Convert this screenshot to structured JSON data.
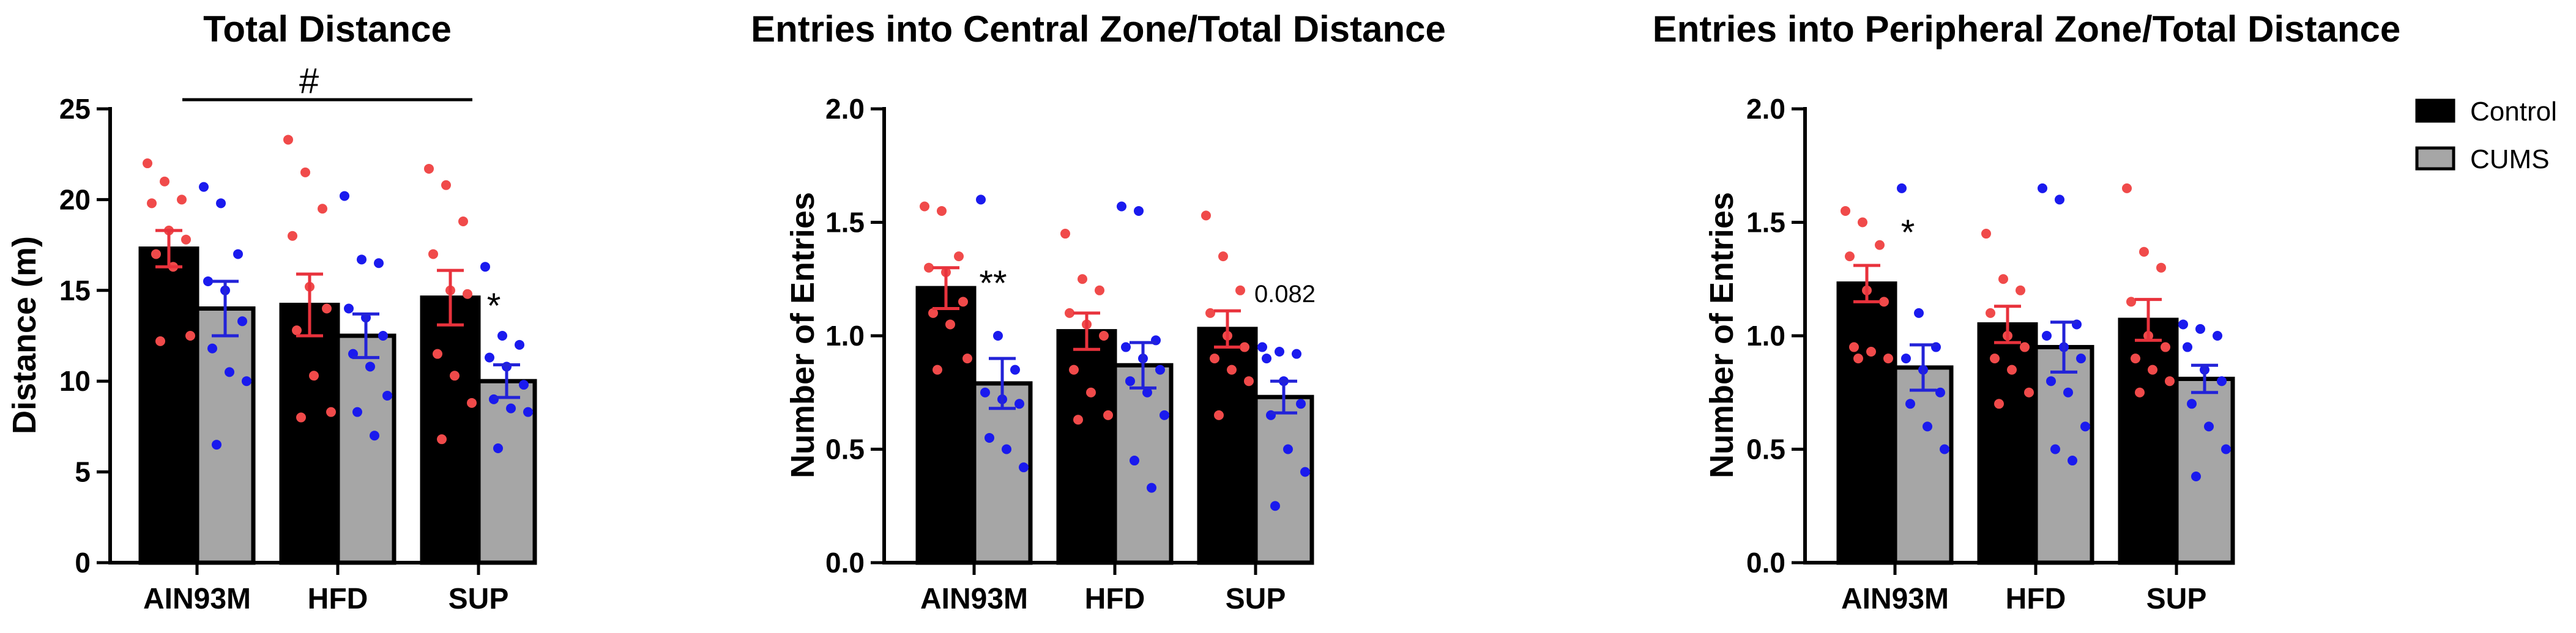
{
  "colors": {
    "control_bar": "#000000",
    "cums_bar": "#a6a6a6",
    "control_points": "#f04a4a",
    "cums_points": "#1a1aee",
    "control_err": "#e8323c",
    "cums_err": "#2323d8"
  },
  "legend": {
    "control": "Control",
    "cums": "CUMS"
  },
  "chart_data": [
    {
      "type": "bar",
      "title": "Total Distance",
      "xlabel": "",
      "ylabel": "Distance  (m)",
      "categories": [
        "AIN93M",
        "HFD",
        "SUP"
      ],
      "ylim": [
        0,
        25
      ],
      "yticks": [
        0,
        5,
        10,
        15,
        20,
        25
      ],
      "ytick_labels": [
        "0",
        "5",
        "10",
        "15",
        "20",
        "25"
      ],
      "series": [
        {
          "name": "Control",
          "values": [
            17.3,
            14.2,
            14.6
          ],
          "sem": [
            1.0,
            1.7,
            1.5
          ],
          "points": [
            [
              22.0,
              21.0,
              20.0,
              19.8,
              18.3,
              17.8,
              17.0,
              16.3,
              12.5,
              12.2
            ],
            [
              23.3,
              21.5,
              19.5,
              18.0,
              15.2,
              14.0,
              12.8,
              10.3,
              8.3,
              8.0
            ],
            [
              21.7,
              20.8,
              18.8,
              17.0,
              15.0,
              14.8,
              11.5,
              10.3,
              8.8,
              6.8
            ]
          ]
        },
        {
          "name": "CUMS",
          "values": [
            14.0,
            12.5,
            10.0
          ],
          "sem": [
            1.5,
            1.2,
            0.9
          ],
          "points": [
            [
              20.7,
              19.8,
              17.0,
              15.5,
              15.0,
              13.3,
              11.8,
              10.5,
              10.0,
              6.5
            ],
            [
              20.2,
              16.7,
              16.5,
              14.0,
              13.5,
              12.5,
              11.5,
              10.8,
              9.2,
              8.3,
              7.0
            ],
            [
              16.3,
              12.5,
              12.0,
              11.3,
              10.8,
              9.8,
              9.0,
              8.5,
              8.3,
              6.3
            ]
          ]
        }
      ],
      "bracket_label": "#",
      "significance": [
        "",
        "",
        "*"
      ]
    },
    {
      "type": "bar",
      "title": "Entries into Central Zone/Total Distance",
      "xlabel": "",
      "ylabel": "Number of Entries",
      "categories": [
        "AIN93M",
        "HFD",
        "SUP"
      ],
      "ylim": [
        0,
        2.0
      ],
      "yticks": [
        0,
        0.5,
        1.0,
        1.5,
        2.0
      ],
      "ytick_labels": [
        "0.0",
        "0.5",
        "1.0",
        "1.5",
        "2.0"
      ],
      "series": [
        {
          "name": "Control",
          "values": [
            1.21,
            1.02,
            1.03
          ],
          "sem": [
            0.09,
            0.08,
            0.08
          ],
          "points": [
            [
              1.57,
              1.55,
              1.35,
              1.3,
              1.28,
              1.15,
              1.1,
              1.05,
              0.9,
              0.85
            ],
            [
              1.45,
              1.25,
              1.2,
              1.1,
              1.05,
              1.0,
              0.85,
              0.75,
              0.65,
              0.63
            ],
            [
              1.53,
              1.35,
              1.2,
              1.1,
              1.0,
              0.95,
              0.9,
              0.85,
              0.8,
              0.65
            ]
          ]
        },
        {
          "name": "CUMS",
          "values": [
            0.79,
            0.87,
            0.73
          ],
          "sem": [
            0.11,
            0.1,
            0.07
          ],
          "points": [
            [
              1.6,
              1.0,
              0.85,
              0.75,
              0.72,
              0.7,
              0.55,
              0.5,
              0.42
            ],
            [
              1.57,
              1.55,
              0.98,
              0.95,
              0.9,
              0.85,
              0.8,
              0.75,
              0.65,
              0.45,
              0.33
            ],
            [
              0.95,
              0.93,
              0.92,
              0.9,
              0.8,
              0.7,
              0.65,
              0.5,
              0.4,
              0.25
            ]
          ]
        }
      ],
      "significance": [
        "**",
        "",
        "0.082"
      ]
    },
    {
      "type": "bar",
      "title": "Entries into Peripheral Zone/Total Distance",
      "xlabel": "",
      "ylabel": "Number of Entries",
      "categories": [
        "AIN93M",
        "HFD",
        "SUP"
      ],
      "ylim": [
        0,
        2.0
      ],
      "yticks": [
        0,
        0.5,
        1.0,
        1.5,
        2.0
      ],
      "ytick_labels": [
        "0.0",
        "0.5",
        "1.0",
        "1.5",
        "2.0"
      ],
      "series": [
        {
          "name": "Control",
          "values": [
            1.23,
            1.05,
            1.07
          ],
          "sem": [
            0.08,
            0.08,
            0.09
          ],
          "points": [
            [
              1.55,
              1.5,
              1.4,
              1.35,
              1.2,
              1.15,
              0.95,
              0.93,
              0.9,
              0.9
            ],
            [
              1.45,
              1.25,
              1.2,
              1.1,
              1.0,
              0.95,
              0.9,
              0.85,
              0.75,
              0.7
            ],
            [
              1.65,
              1.37,
              1.3,
              1.15,
              1.0,
              0.95,
              0.9,
              0.85,
              0.8,
              0.75
            ]
          ]
        },
        {
          "name": "CUMS",
          "values": [
            0.86,
            0.95,
            0.81
          ],
          "sem": [
            0.1,
            0.11,
            0.06
          ],
          "points": [
            [
              1.65,
              1.1,
              0.95,
              0.9,
              0.85,
              0.75,
              0.7,
              0.6,
              0.5
            ],
            [
              1.65,
              1.6,
              1.05,
              1.0,
              0.95,
              0.9,
              0.8,
              0.75,
              0.6,
              0.5,
              0.45
            ],
            [
              1.05,
              1.03,
              1.0,
              0.95,
              0.85,
              0.8,
              0.7,
              0.6,
              0.5,
              0.38
            ]
          ]
        }
      ],
      "significance": [
        "*",
        "",
        ""
      ]
    }
  ]
}
